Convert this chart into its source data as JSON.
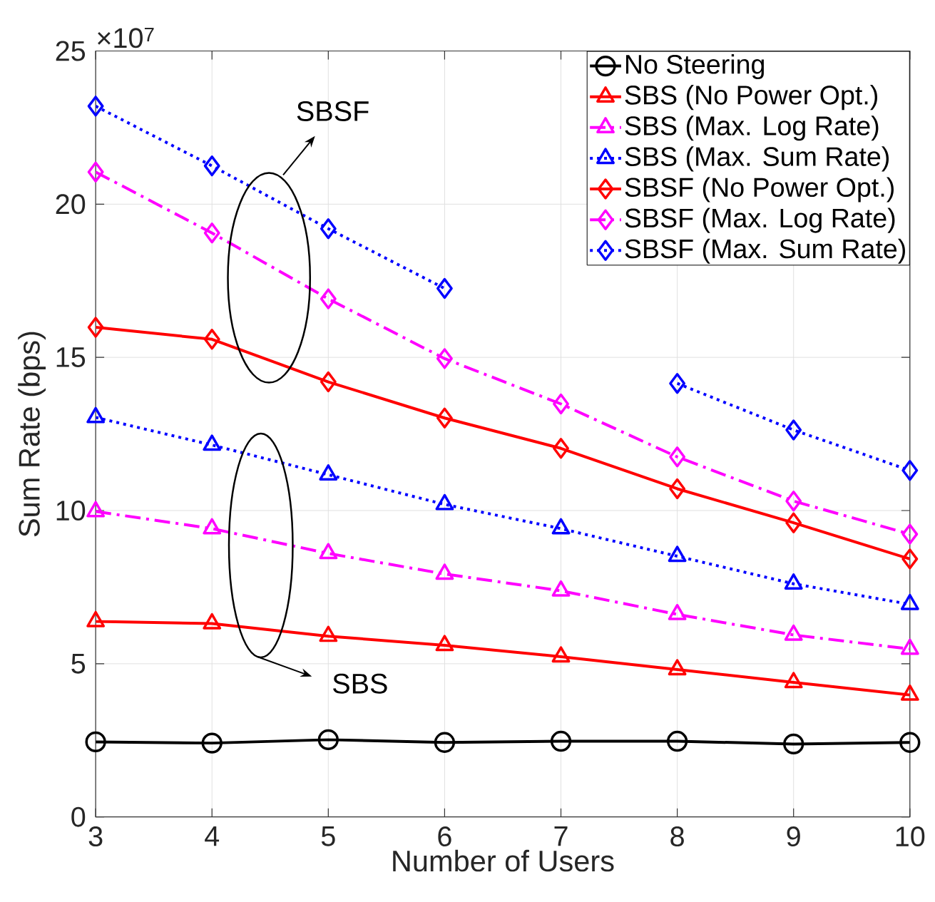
{
  "chart_data": {
    "type": "line",
    "xlabel": "Number of Users",
    "ylabel": "Sum Rate (bps)",
    "x": [
      3,
      4,
      5,
      6,
      7,
      8,
      9,
      10
    ],
    "series": [
      {
        "name": "No Steering",
        "color": "#000000",
        "marker": "circle",
        "line_style": "solid",
        "values": [
          2.45,
          2.41,
          2.52,
          2.43,
          2.47,
          2.47,
          2.38,
          2.43
        ]
      },
      {
        "name": "SBS (No Power Opt.)",
        "color": "#ff0000",
        "marker": "triangle",
        "line_style": "solid",
        "values": [
          6.38,
          6.31,
          5.9,
          5.6,
          5.23,
          4.81,
          4.39,
          3.98
        ]
      },
      {
        "name": "SBS (Max. Log Rate)",
        "color": "#ff00ff",
        "marker": "triangle",
        "line_style": "dashed",
        "values": [
          9.97,
          9.41,
          8.6,
          7.93,
          7.38,
          6.61,
          5.94,
          5.48
        ]
      },
      {
        "name": "SBS (Max. Sum Rate)",
        "color": "#0000ff",
        "marker": "triangle",
        "line_style": "dotted",
        "values": [
          13.04,
          12.14,
          11.17,
          10.2,
          9.41,
          8.51,
          7.61,
          6.94
        ]
      },
      {
        "name": "SBSF (No Power Opt.)",
        "color": "#ff0000",
        "marker": "diamond",
        "line_style": "solid",
        "values": [
          15.98,
          15.59,
          14.2,
          13.02,
          12.03,
          10.71,
          9.6,
          8.42
        ]
      },
      {
        "name": "SBSF (Max. Log Rate)",
        "color": "#ff00ff",
        "marker": "diamond",
        "line_style": "dashed",
        "values": [
          21.05,
          19.06,
          16.91,
          14.96,
          13.48,
          11.75,
          10.31,
          9.23
        ]
      },
      {
        "name": "SBSF (Max. Sum Rate)",
        "color": "#0000ff",
        "marker": "diamond",
        "line_style": "dotted",
        "values": [
          23.2,
          21.25,
          19.2,
          17.25,
          null,
          14.15,
          12.63,
          11.31
        ]
      }
    ],
    "xlim": [
      3,
      10
    ],
    "xticks": [
      3,
      4,
      5,
      6,
      7,
      8,
      9,
      10
    ],
    "ylim": [
      0,
      25
    ],
    "yticks": [
      0,
      5,
      10,
      15,
      20,
      25
    ],
    "grid": true,
    "legend": "top right",
    "annotations": [
      "×10$^{7}$",
      "SBSF",
      "SBS"
    ]
  }
}
